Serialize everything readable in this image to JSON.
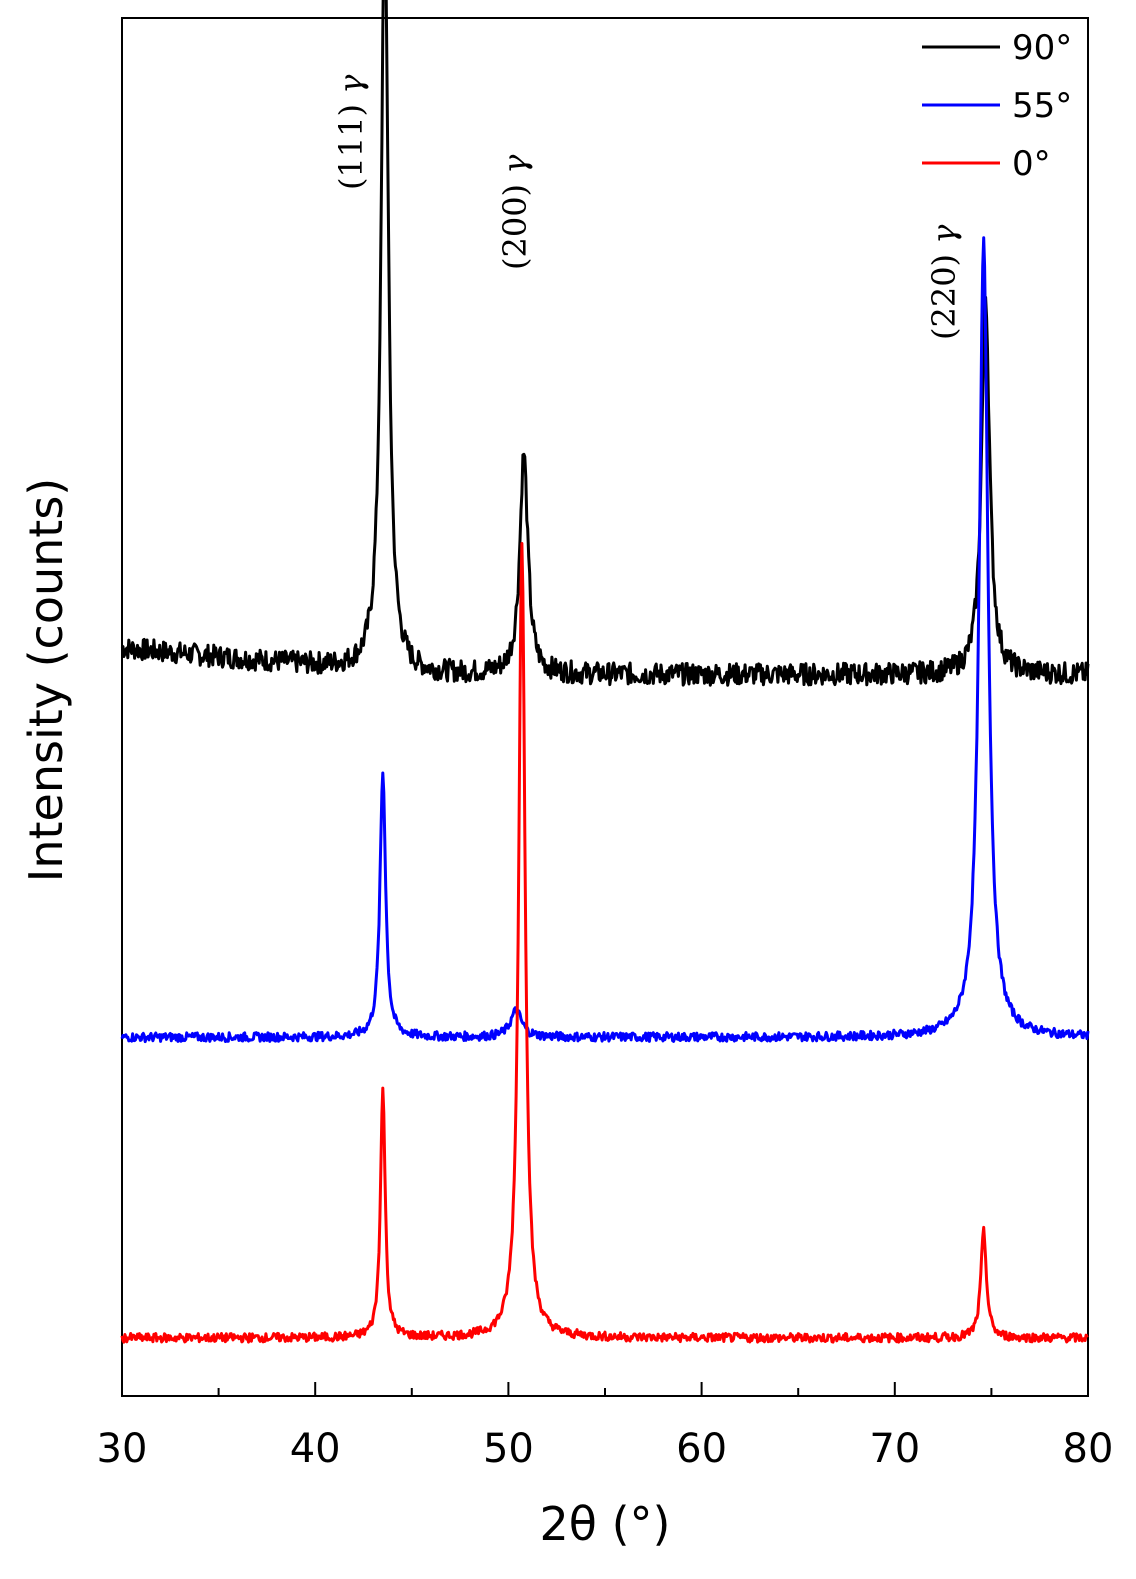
{
  "chart_data": {
    "type": "line",
    "title": "",
    "xlabel": "2θ (°)",
    "ylabel": "Intensity (counts)",
    "xlim": [
      30,
      80
    ],
    "xticks": [
      "30",
      "40",
      "50",
      "60",
      "70",
      "80"
    ],
    "yticks_shown": false,
    "grid": false,
    "legend_position": "top-right",
    "stacked_offset": true,
    "series": [
      {
        "name": "90°",
        "color": "#000000",
        "baseline_level": 0.75,
        "peaks": [
          {
            "x": 43.6,
            "height": 0.86,
            "width": 0.45
          },
          {
            "x": 50.8,
            "height": 0.25,
            "width": 0.5
          },
          {
            "x": 74.7,
            "height": 0.43,
            "width": 0.5
          }
        ]
      },
      {
        "name": "55°",
        "color": "#0000ff",
        "baseline_level": 0.34,
        "peaks": [
          {
            "x": 43.5,
            "height": 0.3,
            "width": 0.35
          },
          {
            "x": 50.4,
            "height": 0.03,
            "width": 0.7
          },
          {
            "x": 74.6,
            "height": 0.9,
            "width": 0.55
          }
        ]
      },
      {
        "name": "0°",
        "color": "#ff0000",
        "baseline_level": 0.0,
        "peaks": [
          {
            "x": 43.5,
            "height": 0.28,
            "width": 0.3
          },
          {
            "x": 50.7,
            "height": 0.9,
            "width": 0.4
          },
          {
            "x": 74.6,
            "height": 0.12,
            "width": 0.35
          }
        ]
      }
    ],
    "annotations": [
      {
        "label": "(111)",
        "greek": "γ",
        "x": 41.8
      },
      {
        "label": "(200)",
        "greek": "γ",
        "x": 50.3
      },
      {
        "label": "(220)",
        "greek": "γ",
        "x": 72.5
      }
    ]
  }
}
